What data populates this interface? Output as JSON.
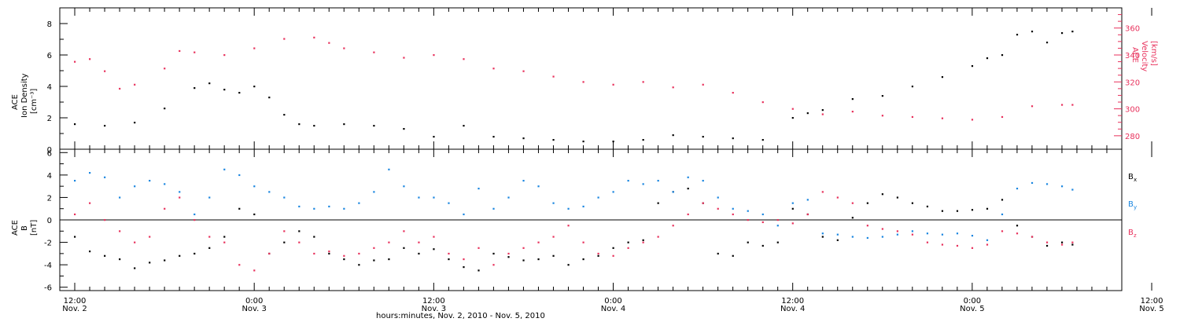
{
  "chart_data": [
    {
      "type": "scatter",
      "panel": "plasma",
      "ylabel_left": [
        "ACE",
        "Ion Density",
        "[cm⁻³]"
      ],
      "ylabel_right": [
        "ACE",
        "Velocity",
        "[km/s]"
      ],
      "ylim_left": [
        0,
        9
      ],
      "yticks_left": [
        "0",
        "2",
        "4",
        "6",
        "8"
      ],
      "ylim_right": [
        270,
        375
      ],
      "yticks_right": [
        "280",
        "300",
        "320",
        "340",
        "360"
      ],
      "x_range_hours": [
        -1,
        70
      ],
      "series": [
        {
          "axis": "left",
          "color": "#000000",
          "x": [
            0,
            2,
            4,
            6,
            8,
            9,
            10,
            11,
            12,
            13,
            14,
            15,
            16,
            18,
            20,
            22,
            24,
            26,
            28,
            30,
            32,
            34,
            36,
            38,
            40,
            42,
            44,
            46,
            48,
            49,
            50,
            52,
            54,
            56,
            58,
            60,
            61,
            62,
            63,
            64,
            65,
            66,
            66.7
          ],
          "y": [
            1.6,
            1.5,
            1.7,
            2.6,
            3.9,
            4.2,
            3.8,
            3.6,
            4.0,
            3.3,
            2.2,
            1.6,
            1.5,
            1.6,
            1.5,
            1.3,
            0.8,
            1.5,
            0.8,
            0.7,
            0.6,
            0.5,
            0.5,
            0.6,
            0.9,
            0.8,
            0.7,
            0.6,
            2.0,
            2.3,
            2.5,
            3.2,
            3.4,
            4.0,
            4.6,
            5.3,
            5.8,
            6.0,
            7.3,
            7.5,
            6.8,
            7.4,
            7.5
          ]
        },
        {
          "axis": "right",
          "color": "#e8315c",
          "x": [
            0,
            1,
            2,
            3,
            4,
            6,
            7,
            8,
            10,
            12,
            14,
            16,
            17,
            18,
            20,
            22,
            24,
            26,
            28,
            30,
            32,
            34,
            36,
            38,
            40,
            42,
            44,
            46,
            48,
            50,
            52,
            54,
            56,
            58,
            60,
            62,
            64,
            66,
            66.7
          ],
          "y": [
            335,
            337,
            328,
            315,
            318,
            330,
            343,
            342,
            340,
            345,
            352,
            353,
            349,
            345,
            342,
            338,
            340,
            337,
            330,
            328,
            324,
            320,
            318,
            320,
            316,
            318,
            312,
            305,
            300,
            296,
            298,
            295,
            294,
            293,
            292,
            294,
            302,
            303,
            303
          ]
        }
      ]
    },
    {
      "type": "scatter",
      "panel": "magnetic-field",
      "ylabel_left": [
        "ACE",
        "B",
        "[nT]"
      ],
      "ylim": [
        -6.3,
        6.3
      ],
      "yticks": [
        "-6",
        "-4",
        "-2",
        "0",
        "2",
        "4",
        "6"
      ],
      "x_range_hours": [
        -1,
        70
      ],
      "series": [
        {
          "name": "Bx",
          "legend_base": "B",
          "legend_sub": "x",
          "color": "#000000",
          "x": [
            0,
            1,
            2,
            3,
            4,
            5,
            6,
            7,
            8,
            9,
            10,
            11,
            12,
            13,
            14,
            15,
            16,
            17,
            18,
            19,
            20,
            21,
            22,
            23,
            24,
            25,
            26,
            27,
            28,
            29,
            30,
            31,
            32,
            33,
            34,
            35,
            36,
            37,
            38,
            39,
            40,
            41,
            42,
            43,
            44,
            45,
            46,
            47,
            48,
            49,
            50,
            51,
            52,
            53,
            54,
            55,
            56,
            57,
            58,
            59,
            60,
            61,
            62,
            63,
            64,
            65,
            66,
            66.7
          ],
          "y": [
            -1.5,
            -2.8,
            -3.2,
            -3.5,
            -4.3,
            -3.8,
            -3.6,
            -3.2,
            -3.0,
            -2.5,
            -1.5,
            1.0,
            0.5,
            -3.0,
            -2.0,
            -1.0,
            -1.5,
            -3.0,
            -3.5,
            -4.0,
            -3.6,
            -3.5,
            -2.5,
            -3.0,
            -2.6,
            -3.5,
            -4.2,
            -4.5,
            -3.0,
            -3.3,
            -3.6,
            -3.5,
            -3.2,
            -4.0,
            -3.5,
            -3.2,
            -2.5,
            -2.0,
            -1.8,
            1.5,
            2.5,
            2.8,
            1.5,
            -3.0,
            -3.2,
            -2.0,
            -2.3,
            -2.0,
            1.0,
            0.5,
            -1.5,
            -1.8,
            0.2,
            1.5,
            2.3,
            2.0,
            1.5,
            1.2,
            0.8,
            0.8,
            0.9,
            1.0,
            1.8,
            -0.5,
            -1.5,
            -2.3,
            -2.0,
            -2.2
          ]
        },
        {
          "name": "By",
          "legend_base": "B",
          "legend_sub": "y",
          "color": "#1a86e0",
          "x": [
            0,
            1,
            2,
            3,
            4,
            5,
            6,
            7,
            8,
            9,
            10,
            11,
            12,
            13,
            14,
            15,
            16,
            17,
            18,
            19,
            20,
            21,
            22,
            23,
            24,
            25,
            26,
            27,
            28,
            29,
            30,
            31,
            32,
            33,
            34,
            35,
            36,
            37,
            38,
            39,
            40,
            41,
            42,
            43,
            44,
            45,
            46,
            47,
            48,
            49,
            50,
            51,
            52,
            53,
            54,
            55,
            56,
            57,
            58,
            59,
            60,
            61,
            62,
            63,
            64,
            65,
            66,
            66.7
          ],
          "y": [
            3.5,
            4.2,
            3.8,
            2.0,
            3.0,
            3.5,
            3.2,
            2.5,
            0.5,
            2.0,
            4.5,
            4.0,
            3.0,
            2.5,
            2.0,
            1.2,
            1.0,
            1.2,
            1.0,
            1.5,
            2.5,
            4.5,
            3.0,
            2.0,
            2.0,
            1.5,
            0.5,
            2.8,
            1.0,
            2.0,
            3.5,
            3.0,
            1.5,
            1.0,
            1.2,
            2.0,
            2.5,
            3.5,
            3.2,
            3.5,
            2.5,
            3.8,
            3.5,
            2.0,
            1.0,
            0.8,
            0.5,
            -0.5,
            1.5,
            1.8,
            -1.2,
            -1.3,
            -1.5,
            -1.6,
            -1.5,
            -1.3,
            -1.0,
            -1.2,
            -1.3,
            -1.2,
            -1.4,
            -1.8,
            0.5,
            2.8,
            3.3,
            3.2,
            3.0,
            2.7
          ]
        },
        {
          "name": "Bz",
          "legend_base": "B",
          "legend_sub": "z",
          "color": "#e8315c",
          "x": [
            0,
            1,
            2,
            3,
            4,
            5,
            6,
            7,
            8,
            9,
            10,
            11,
            12,
            13,
            14,
            15,
            16,
            17,
            18,
            19,
            20,
            21,
            22,
            23,
            24,
            25,
            26,
            27,
            28,
            29,
            30,
            31,
            32,
            33,
            34,
            35,
            36,
            37,
            38,
            39,
            40,
            41,
            42,
            43,
            44,
            45,
            46,
            47,
            48,
            49,
            50,
            51,
            52,
            53,
            54,
            55,
            56,
            57,
            58,
            59,
            60,
            61,
            62,
            63,
            64,
            65,
            66,
            66.7
          ],
          "y": [
            0.5,
            1.5,
            0.0,
            -1.0,
            -2.0,
            -1.5,
            1.0,
            2.0,
            0.0,
            -1.5,
            -2.0,
            -4.0,
            -4.5,
            -3.0,
            -1.0,
            -2.0,
            -3.0,
            -2.8,
            -3.2,
            -3.0,
            -2.5,
            -2.0,
            -1.0,
            -2.0,
            -1.5,
            -3.0,
            -3.5,
            -2.5,
            -4.0,
            -3.0,
            -2.5,
            -2.0,
            -1.5,
            -0.5,
            -2.0,
            -3.0,
            -3.2,
            -2.5,
            -2.0,
            -1.5,
            -0.5,
            0.5,
            1.5,
            1.0,
            0.5,
            0.0,
            -0.2,
            0.0,
            -0.3,
            0.5,
            2.5,
            2.0,
            1.5,
            -0.5,
            -0.8,
            -1.0,
            -1.3,
            -2.0,
            -2.2,
            -2.3,
            -2.5,
            -2.2,
            -1.0,
            -1.2,
            -1.5,
            -2.0,
            -2.2,
            -2.0
          ]
        }
      ]
    }
  ],
  "x_axis": {
    "xlabel": "hours:minutes, Nov.  2, 2010 - Nov.  5, 2010",
    "major_ticks": [
      {
        "hour": 0,
        "time": "12:00",
        "date": "Nov. 2"
      },
      {
        "hour": 12,
        "time": "0:00",
        "date": "Nov. 3"
      },
      {
        "hour": 24,
        "time": "12:00",
        "date": "Nov. 3"
      },
      {
        "hour": 36,
        "time": "0:00",
        "date": "Nov. 4"
      },
      {
        "hour": 48,
        "time": "12:00",
        "date": "Nov. 4"
      },
      {
        "hour": 60,
        "time": "0:00",
        "date": "Nov. 5"
      },
      {
        "hour": 72,
        "time": "12:00",
        "date": "Nov. 5"
      }
    ]
  }
}
